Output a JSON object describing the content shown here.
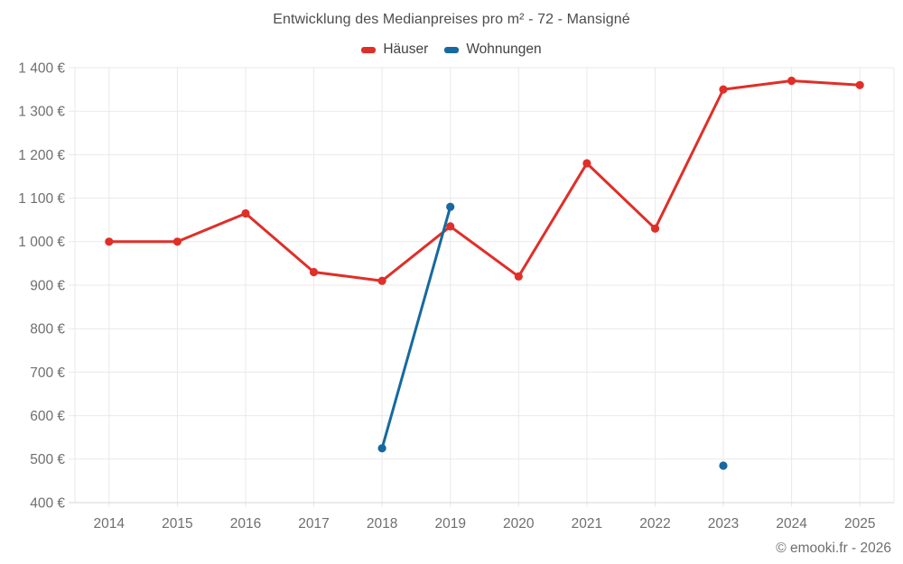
{
  "title": "Entwicklung des Medianpreises pro m² - 72 - Mansigné",
  "credit": "© emooki.fr - 2026",
  "legend": {
    "items": [
      {
        "label": "Häuser",
        "color": "#df2f28"
      },
      {
        "label": "Wohnungen",
        "color": "#17699f"
      }
    ]
  },
  "colors": {
    "hauser_red": "#df2f28",
    "wohnungen_blue": "#17699f",
    "grid": "#e9e9e9",
    "axis": "#d4d4d4",
    "tick_text": "#6f6f6f",
    "title_text": "#4d4d4d",
    "background": "#ffffff"
  },
  "chart_data": {
    "type": "line",
    "title": "Entwicklung des Medianpreises pro m² - 72 - Mansigné",
    "categories": [
      "2014",
      "2015",
      "2016",
      "2017",
      "2018",
      "2019",
      "2020",
      "2021",
      "2022",
      "2023",
      "2024",
      "2025"
    ],
    "series": [
      {
        "name": "Häuser",
        "color": "#df2f28",
        "values": [
          1000,
          1000,
          1065,
          930,
          910,
          1035,
          920,
          1180,
          1030,
          1350,
          1370,
          1360
        ]
      },
      {
        "name": "Wohnungen",
        "color": "#17699f",
        "values": [
          null,
          null,
          null,
          null,
          525,
          1080,
          null,
          null,
          null,
          485,
          null,
          null
        ]
      }
    ],
    "xlabel": "",
    "ylabel": "",
    "unit": "€",
    "ylim": [
      400,
      1400
    ],
    "y_ticks": [
      400,
      500,
      600,
      700,
      800,
      900,
      1000,
      1100,
      1200,
      1300,
      1400
    ],
    "y_tick_labels": [
      "400 €",
      "500 €",
      "600 €",
      "700 €",
      "800 €",
      "900 €",
      "1 000 €",
      "1 100 €",
      "1 200 €",
      "1 300 €",
      "1 400 €"
    ],
    "grid": true,
    "markers": true,
    "legend_position": "top"
  }
}
